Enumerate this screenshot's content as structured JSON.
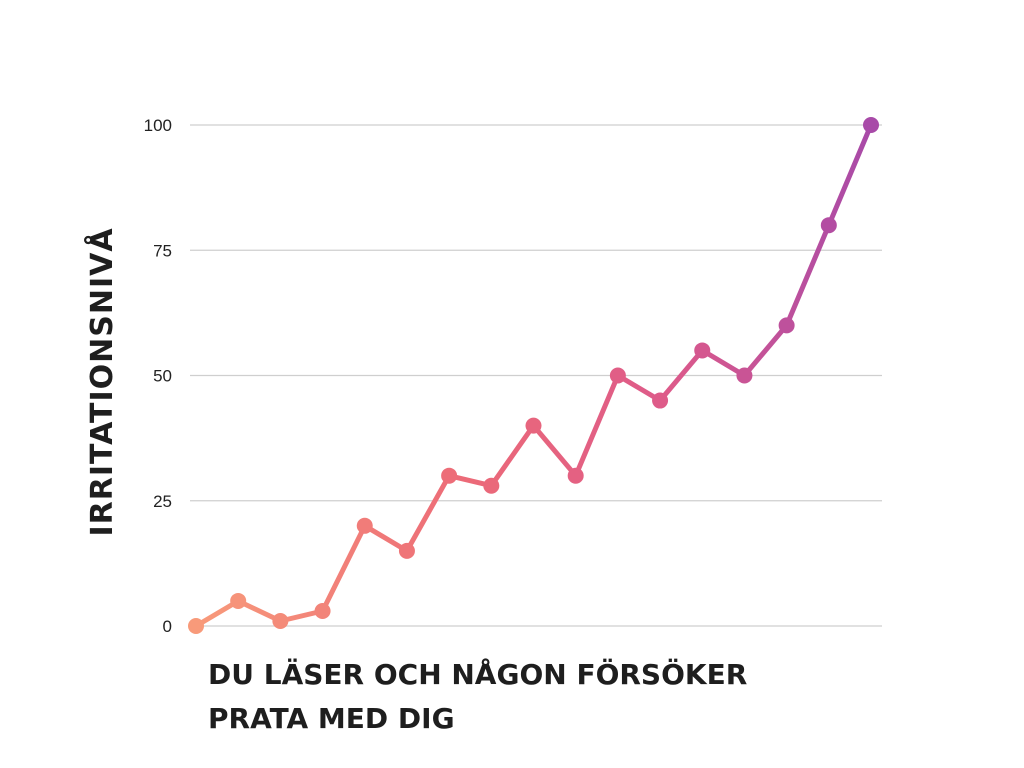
{
  "chart_data": {
    "type": "line",
    "title": "",
    "xlabel_lines": [
      "DU LÄSER OCH NÅGON FÖRSÖKER",
      "PRATA MED DIG"
    ],
    "ylabel": "IRRITATIONSNIVÅ",
    "ylim": [
      0,
      100
    ],
    "yticks": [
      "0",
      "25",
      "50",
      "75",
      "100"
    ],
    "grid": true,
    "gradient_colors": [
      "#f89a7a",
      "#ec6a78",
      "#dd5a8a",
      "#a84aa8"
    ],
    "y": [
      0,
      5,
      1,
      3,
      20,
      15,
      30,
      28,
      40,
      30,
      50,
      45,
      55,
      50,
      60,
      80,
      100
    ]
  }
}
